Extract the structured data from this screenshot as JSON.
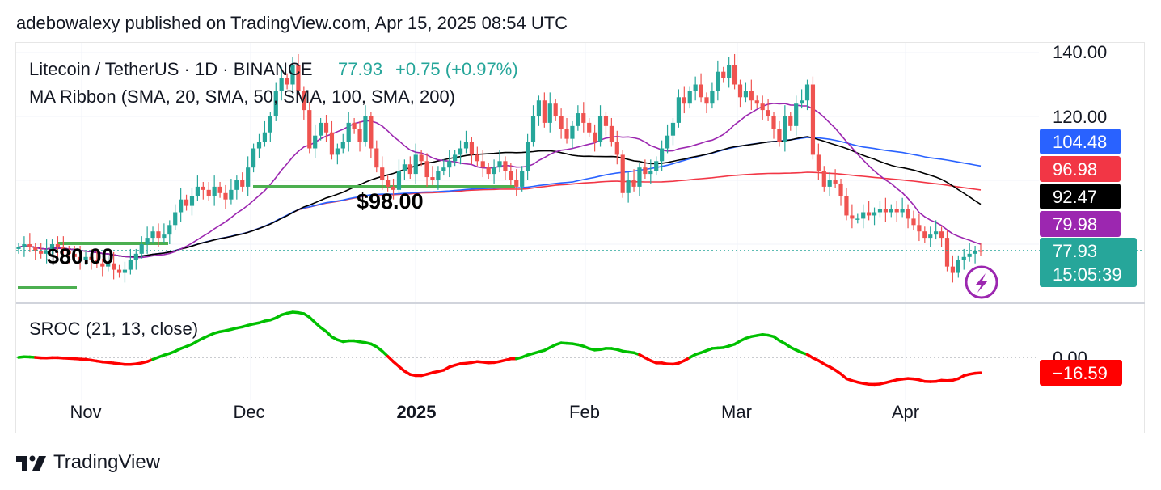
{
  "header": {
    "published_line": "adebowalexy published on TradingView.com, Apr 15, 2025 08:54 UTC"
  },
  "legend": {
    "symbol": "Litecoin / TetherUS · 1D · BINANCE",
    "last_price": "77.93",
    "change": "+0.75 (+0.97%)",
    "ma_ribbon": "MA Ribbon (SMA, 20, SMA, 50, SMA, 100, SMA, 200)",
    "sroc": "SROC (21, 13, close)"
  },
  "annotations": {
    "level_98": "$98.00",
    "level_80": "$80.00"
  },
  "price_scale": {
    "ticks": [
      "140.00",
      "120.00"
    ],
    "badges": [
      {
        "label": "104.48",
        "color": "#2962ff",
        "text_color": "#ffffff"
      },
      {
        "label": "96.98",
        "color": "#f23645",
        "text_color": "#ffffff"
      },
      {
        "label": "92.47",
        "color": "#000000",
        "text_color": "#ffffff"
      },
      {
        "label": "79.98",
        "color": "#9c27b0",
        "text_color": "#ffffff"
      }
    ],
    "last": {
      "price": "77.93",
      "countdown": "15:05:39",
      "color": "#26a69a"
    }
  },
  "sroc_scale": {
    "zero_label": "0.00",
    "value_label": "−16.59",
    "value_color": "#ff0000"
  },
  "time_axis": [
    "Nov",
    "Dec",
    "2025",
    "Feb",
    "Mar",
    "Apr"
  ],
  "footer": {
    "brand": "TradingView",
    "logo_icon": "tradingview-logo-icon"
  },
  "chart_data": {
    "type": "candlestick",
    "symbol": "LTCUSDT",
    "timeframe": "1D",
    "y_range": [
      63,
      142
    ],
    "grid": true,
    "last_close": 77.93,
    "candles_close_approx": [
      79,
      80,
      79,
      78,
      77,
      78,
      80,
      79,
      78,
      77,
      76,
      75,
      76,
      75,
      74,
      73,
      74,
      72,
      71,
      72,
      75,
      77,
      80,
      82,
      84,
      82,
      83,
      86,
      90,
      94,
      92,
      95,
      98,
      97,
      95,
      98,
      96,
      94,
      97,
      100,
      98,
      104,
      110,
      112,
      115,
      120,
      128,
      132,
      130,
      136,
      128,
      122,
      110,
      114,
      118,
      115,
      108,
      110,
      112,
      118,
      116,
      112,
      120,
      110,
      104,
      100,
      98,
      97,
      103,
      105,
      102,
      108,
      106,
      101,
      100,
      103,
      104,
      106,
      108,
      110,
      112,
      108,
      106,
      104,
      102,
      104,
      106,
      103,
      100,
      98,
      103,
      112,
      120,
      125,
      118,
      124,
      120,
      116,
      113,
      117,
      121,
      118,
      115,
      112,
      120,
      117,
      112,
      108,
      96,
      100,
      98,
      104,
      102,
      103,
      106,
      110,
      114,
      118,
      126,
      124,
      128,
      130,
      126,
      124,
      128,
      134,
      132,
      136,
      130,
      126,
      128,
      125,
      124,
      122,
      120,
      116,
      112,
      120,
      117,
      124,
      125,
      130,
      108,
      103,
      98,
      100,
      99,
      95,
      89,
      88,
      88,
      90,
      89,
      90,
      91,
      90,
      91,
      90,
      91,
      88,
      86,
      84,
      82,
      83,
      84,
      82,
      73,
      71,
      75,
      76,
      77,
      78,
      77.93
    ],
    "ma_ribbon": {
      "sma20": {
        "color": "#9c27b0",
        "last": 79.98
      },
      "sma50": {
        "color": "#000000",
        "last": 92.47
      },
      "sma100": {
        "color": "#2962ff",
        "last": 104.48
      },
      "sma200": {
        "color": "#f23645",
        "last": 96.98
      }
    },
    "horizontal_levels": [
      {
        "value": 98.0,
        "label": "$98.00",
        "color": "#4caf50"
      },
      {
        "value": 80.0,
        "label": "$80.00",
        "color": "#4caf50"
      }
    ],
    "sroc": {
      "params": "21, 13, close",
      "last": -16.59,
      "pos_color": "#00c000",
      "neg_color": "#ff0000"
    },
    "x_labels": [
      "Nov",
      "Dec",
      "2025",
      "Feb",
      "Mar",
      "Apr"
    ]
  }
}
